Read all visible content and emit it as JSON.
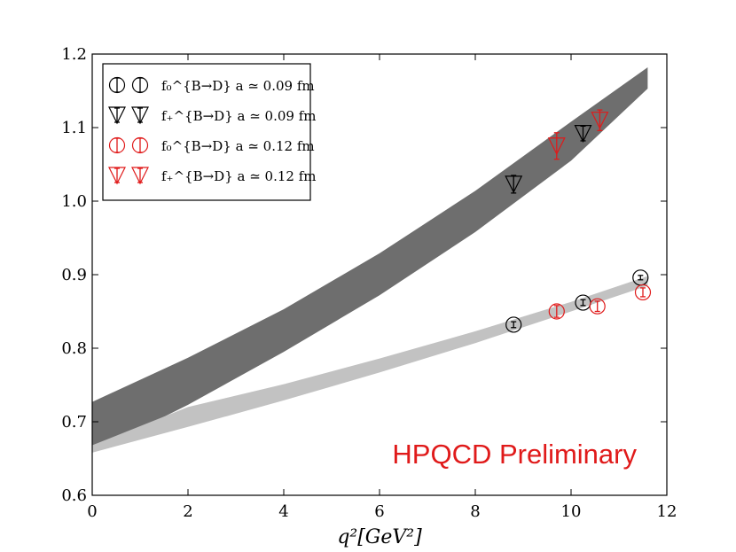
{
  "chart_data": {
    "type": "scatter",
    "title": "",
    "xlabel": "q²[GeV²]",
    "ylabel": "",
    "xlim": [
      0,
      12
    ],
    "ylim": [
      0.6,
      1.2
    ],
    "xticks": [
      "0",
      "2",
      "4",
      "6",
      "8",
      "10",
      "12"
    ],
    "yticks": [
      "0.6",
      "0.7",
      "0.8",
      "0.9",
      "1.0",
      "1.1",
      "1.2"
    ],
    "bands": [
      {
        "name": "f+ fit band",
        "color": "#6e6e6e",
        "x": [
          0.0,
          2.0,
          4.0,
          6.0,
          8.0,
          10.0,
          11.6
        ],
        "low": [
          0.658,
          0.723,
          0.795,
          0.872,
          0.958,
          1.055,
          1.153
        ],
        "high": [
          0.727,
          0.787,
          0.853,
          0.929,
          1.014,
          1.108,
          1.182
        ]
      },
      {
        "name": "f0 fit band",
        "color": "#c2c2c2",
        "x": [
          0.0,
          2.0,
          4.0,
          6.0,
          8.0,
          10.0,
          11.6
        ],
        "low": [
          0.658,
          0.693,
          0.729,
          0.767,
          0.807,
          0.85,
          0.885
        ],
        "high": [
          0.668,
          0.72,
          0.751,
          0.786,
          0.823,
          0.863,
          0.898
        ]
      }
    ],
    "series": [
      {
        "name": "f0 a≃0.09 fm",
        "marker": "circle",
        "color": "#000000",
        "points": [
          {
            "x": 8.8,
            "y": 0.832,
            "err": 0.004
          },
          {
            "x": 10.25,
            "y": 0.862,
            "err": 0.004
          },
          {
            "x": 11.45,
            "y": 0.896,
            "err": 0.003
          }
        ]
      },
      {
        "name": "f+ a≃0.09 fm",
        "marker": "triangle-down",
        "color": "#000000",
        "points": [
          {
            "x": 8.8,
            "y": 1.023,
            "err": 0.012
          },
          {
            "x": 10.25,
            "y": 1.092,
            "err": 0.01
          }
        ]
      },
      {
        "name": "f0 a≃0.12 fm",
        "marker": "circle",
        "color": "#e01a1a",
        "points": [
          {
            "x": 9.7,
            "y": 0.85,
            "err": 0.008
          },
          {
            "x": 10.55,
            "y": 0.857,
            "err": 0.007
          },
          {
            "x": 11.5,
            "y": 0.876,
            "err": 0.006
          }
        ]
      },
      {
        "name": "f+ a≃0.12 fm",
        "marker": "triangle-down",
        "color": "#e01a1a",
        "points": [
          {
            "x": 9.7,
            "y": 1.075,
            "err": 0.018
          },
          {
            "x": 10.6,
            "y": 1.11,
            "err": 0.014
          }
        ]
      }
    ],
    "legend": {
      "placement": "top-left",
      "entries": [
        {
          "label": "f₀^{B→D} a ≃ 0.09 fm",
          "marker": "circle",
          "color": "#000000"
        },
        {
          "label": "f₊^{B→D} a ≃ 0.09 fm",
          "marker": "triangle-down",
          "color": "#000000"
        },
        {
          "label": "f₀^{B→D} a ≃ 0.12 fm",
          "marker": "circle",
          "color": "#e01a1a"
        },
        {
          "label": "f₊^{B→D} a ≃ 0.12 fm",
          "marker": "triangle-down",
          "color": "#e01a1a"
        }
      ]
    },
    "annotation": {
      "text": "HPQCD Preliminary",
      "color": "#e01a1a"
    }
  }
}
